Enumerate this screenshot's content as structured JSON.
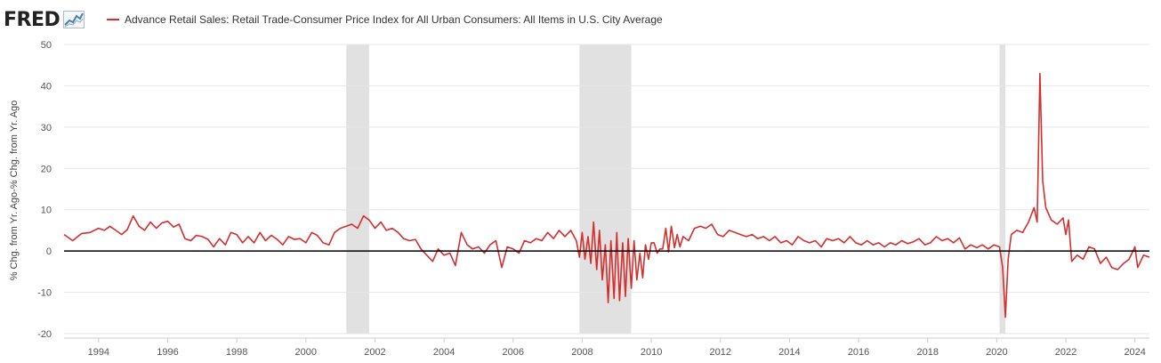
{
  "header": {
    "logo_text": "FRED",
    "logo_icon": "trend-line-icon",
    "series_label": "Advance Retail Sales: Retail Trade-Consumer Price Index for All Urban Consumers: All Items in U.S. City Average",
    "series_color": "#d32f2f"
  },
  "chart_data": {
    "type": "line",
    "title": "",
    "ylabel": "% Chg. from Yr. Ago-% Chg. from Yr. Ago",
    "xlabel": "",
    "ylim": [
      -20,
      50
    ],
    "xlim": [
      1993.0,
      2024.42
    ],
    "y_ticks": [
      "50",
      "40",
      "30",
      "20",
      "10",
      "0",
      "-10",
      "-20"
    ],
    "x_ticks": [
      "1994",
      "1996",
      "1998",
      "2000",
      "2002",
      "2004",
      "2006",
      "2008",
      "2010",
      "2012",
      "2014",
      "2016",
      "2018",
      "2020",
      "2022",
      "2024"
    ],
    "grid": "horizontal",
    "zero_line": true,
    "recessions": [
      {
        "start": 2001.17,
        "end": 2001.83
      },
      {
        "start": 2007.92,
        "end": 2009.42
      },
      {
        "start": 2020.08,
        "end": 2020.25
      }
    ],
    "series": [
      {
        "name": "Advance Retail Sales: Retail Trade-Consumer Price Index for All Urban Consumers: All Items in U.S. City Average",
        "color": "#d32f2f",
        "points": [
          [
            1993.0,
            4.0
          ],
          [
            1993.25,
            2.5
          ],
          [
            1993.5,
            4.2
          ],
          [
            1993.75,
            4.5
          ],
          [
            1994.0,
            5.5
          ],
          [
            1994.17,
            5.0
          ],
          [
            1994.33,
            6.0
          ],
          [
            1994.5,
            5.0
          ],
          [
            1994.67,
            4.0
          ],
          [
            1994.83,
            5.2
          ],
          [
            1995.0,
            8.5
          ],
          [
            1995.17,
            6.0
          ],
          [
            1995.33,
            5.0
          ],
          [
            1995.5,
            7.0
          ],
          [
            1995.67,
            5.5
          ],
          [
            1995.83,
            6.8
          ],
          [
            1996.0,
            7.2
          ],
          [
            1996.17,
            5.8
          ],
          [
            1996.33,
            6.5
          ],
          [
            1996.5,
            3.0
          ],
          [
            1996.67,
            2.5
          ],
          [
            1996.83,
            3.8
          ],
          [
            1997.0,
            3.5
          ],
          [
            1997.17,
            2.8
          ],
          [
            1997.33,
            1.0
          ],
          [
            1997.5,
            3.0
          ],
          [
            1997.67,
            1.5
          ],
          [
            1997.83,
            4.5
          ],
          [
            1998.0,
            4.0
          ],
          [
            1998.17,
            2.0
          ],
          [
            1998.33,
            3.5
          ],
          [
            1998.5,
            2.0
          ],
          [
            1998.67,
            4.5
          ],
          [
            1998.83,
            2.5
          ],
          [
            1999.0,
            3.8
          ],
          [
            1999.17,
            2.8
          ],
          [
            1999.33,
            1.5
          ],
          [
            1999.5,
            3.5
          ],
          [
            1999.67,
            2.8
          ],
          [
            1999.83,
            3.0
          ],
          [
            2000.0,
            2.0
          ],
          [
            2000.17,
            4.5
          ],
          [
            2000.33,
            3.8
          ],
          [
            2000.5,
            2.0
          ],
          [
            2000.67,
            1.5
          ],
          [
            2000.83,
            4.5
          ],
          [
            2001.0,
            5.5
          ],
          [
            2001.17,
            6.0
          ],
          [
            2001.33,
            6.5
          ],
          [
            2001.5,
            5.5
          ],
          [
            2001.67,
            8.5
          ],
          [
            2001.83,
            7.5
          ],
          [
            2002.0,
            5.5
          ],
          [
            2002.17,
            7.0
          ],
          [
            2002.33,
            5.0
          ],
          [
            2002.5,
            5.5
          ],
          [
            2002.67,
            4.5
          ],
          [
            2002.83,
            3.0
          ],
          [
            2003.0,
            2.5
          ],
          [
            2003.17,
            2.8
          ],
          [
            2003.33,
            0.5
          ],
          [
            2003.5,
            -1.0
          ],
          [
            2003.67,
            -2.5
          ],
          [
            2003.83,
            0.5
          ],
          [
            2004.0,
            -1.0
          ],
          [
            2004.17,
            -0.5
          ],
          [
            2004.33,
            -3.5
          ],
          [
            2004.5,
            4.5
          ],
          [
            2004.67,
            1.5
          ],
          [
            2004.83,
            0.5
          ],
          [
            2005.0,
            1.0
          ],
          [
            2005.17,
            -0.5
          ],
          [
            2005.33,
            1.5
          ],
          [
            2005.5,
            2.5
          ],
          [
            2005.67,
            -4.0
          ],
          [
            2005.83,
            1.0
          ],
          [
            2006.0,
            0.5
          ],
          [
            2006.17,
            -0.5
          ],
          [
            2006.33,
            2.5
          ],
          [
            2006.5,
            2.0
          ],
          [
            2006.67,
            3.0
          ],
          [
            2006.83,
            2.5
          ],
          [
            2007.0,
            4.5
          ],
          [
            2007.17,
            3.0
          ],
          [
            2007.33,
            5.0
          ],
          [
            2007.5,
            3.5
          ],
          [
            2007.67,
            5.0
          ],
          [
            2007.83,
            2.5
          ],
          [
            2008.0,
            4.5
          ],
          [
            2008.17,
            3.5
          ],
          [
            2008.33,
            7.0
          ],
          [
            2008.5,
            5.0
          ],
          [
            2008.67,
            1.5
          ],
          [
            2008.83,
            2.5
          ],
          [
            2009.0,
            4.5
          ],
          [
            2009.17,
            2.0
          ],
          [
            2009.33,
            3.0
          ],
          [
            2009.5,
            2.5
          ],
          [
            2009.67,
            -0.5
          ],
          [
            2009.83,
            1.5
          ],
          [
            2010.0,
            2.0
          ],
          [
            2010.17,
            -0.5
          ],
          [
            2010.33,
            0.5
          ],
          [
            2010.5,
            -0.2
          ],
          [
            2010.67,
            0.8
          ],
          [
            2010.83,
            1.0
          ],
          [
            2007.92,
            -1.5
          ],
          [
            2008.08,
            -2.0
          ],
          [
            2008.25,
            -3.0
          ],
          [
            2008.42,
            -4.5
          ],
          [
            2008.58,
            -7.0
          ],
          [
            2008.75,
            -12.5
          ],
          [
            2008.92,
            -11.5
          ],
          [
            2009.08,
            -12.0
          ],
          [
            2009.25,
            -11.0
          ],
          [
            2009.42,
            -9.0
          ],
          [
            2009.58,
            -7.0
          ],
          [
            2009.75,
            -6.5
          ],
          [
            2009.92,
            -2.0
          ],
          [
            2010.08,
            2.0
          ],
          [
            2010.25,
            0.5
          ],
          [
            2010.42,
            5.5
          ],
          [
            2010.58,
            6.0
          ],
          [
            2010.75,
            4.0
          ],
          [
            2010.92,
            3.5
          ],
          [
            2011.08,
            2.5
          ],
          [
            2011.25,
            5.5
          ],
          [
            2011.42,
            6.0
          ],
          [
            2011.58,
            5.5
          ],
          [
            2011.75,
            6.5
          ],
          [
            2011.92,
            4.0
          ],
          [
            2012.08,
            3.5
          ],
          [
            2012.25,
            5.0
          ],
          [
            2012.42,
            4.5
          ],
          [
            2012.58,
            4.0
          ],
          [
            2012.75,
            3.5
          ],
          [
            2012.92,
            4.0
          ],
          [
            2013.08,
            3.0
          ],
          [
            2013.25,
            3.5
          ],
          [
            2013.42,
            2.5
          ],
          [
            2013.58,
            3.5
          ],
          [
            2013.75,
            2.0
          ],
          [
            2013.92,
            2.5
          ],
          [
            2014.08,
            1.5
          ],
          [
            2014.25,
            3.5
          ],
          [
            2014.42,
            2.5
          ],
          [
            2014.58,
            2.0
          ],
          [
            2014.75,
            2.5
          ],
          [
            2014.92,
            1.0
          ],
          [
            2015.08,
            3.0
          ],
          [
            2015.25,
            2.5
          ],
          [
            2015.42,
            3.0
          ],
          [
            2015.58,
            2.0
          ],
          [
            2015.75,
            3.5
          ],
          [
            2015.92,
            2.0
          ],
          [
            2016.08,
            1.5
          ],
          [
            2016.25,
            2.5
          ],
          [
            2016.42,
            1.5
          ],
          [
            2016.58,
            2.0
          ],
          [
            2016.75,
            1.0
          ],
          [
            2016.92,
            2.0
          ],
          [
            2017.08,
            1.5
          ],
          [
            2017.25,
            2.5
          ],
          [
            2017.42,
            1.8
          ],
          [
            2017.58,
            2.2
          ],
          [
            2017.75,
            3.0
          ],
          [
            2017.92,
            1.5
          ],
          [
            2018.08,
            2.0
          ],
          [
            2018.25,
            3.5
          ],
          [
            2018.42,
            2.5
          ],
          [
            2018.58,
            3.0
          ],
          [
            2018.75,
            2.0
          ],
          [
            2018.92,
            3.2
          ],
          [
            2019.08,
            0.5
          ],
          [
            2019.25,
            1.5
          ],
          [
            2019.42,
            0.8
          ],
          [
            2019.58,
            1.5
          ],
          [
            2019.75,
            0.5
          ],
          [
            2019.92,
            1.5
          ],
          [
            2020.08,
            1.0
          ],
          [
            2020.17,
            -4.0
          ],
          [
            2020.25,
            -16.0
          ],
          [
            2020.33,
            -2.0
          ],
          [
            2020.42,
            4.0
          ],
          [
            2020.58,
            5.0
          ],
          [
            2020.75,
            4.5
          ],
          [
            2020.92,
            7.0
          ],
          [
            2021.08,
            10.5
          ],
          [
            2021.17,
            7.0
          ],
          [
            2021.25,
            43.0
          ],
          [
            2021.33,
            17.0
          ],
          [
            2021.42,
            10.5
          ],
          [
            2021.58,
            7.5
          ],
          [
            2021.75,
            6.5
          ],
          [
            2021.92,
            8.0
          ],
          [
            2022.0,
            4.0
          ],
          [
            2022.08,
            7.5
          ],
          [
            2022.17,
            -2.5
          ],
          [
            2022.33,
            -1.0
          ],
          [
            2022.5,
            -2.0
          ],
          [
            2022.67,
            1.0
          ],
          [
            2022.83,
            0.5
          ],
          [
            2023.0,
            -3.0
          ],
          [
            2023.17,
            -1.5
          ],
          [
            2023.33,
            -4.0
          ],
          [
            2023.5,
            -4.5
          ],
          [
            2023.67,
            -3.0
          ],
          [
            2023.83,
            -2.0
          ],
          [
            2024.0,
            1.0
          ],
          [
            2024.08,
            -4.0
          ],
          [
            2024.25,
            -1.0
          ],
          [
            2024.42,
            -1.5
          ]
        ]
      }
    ]
  }
}
